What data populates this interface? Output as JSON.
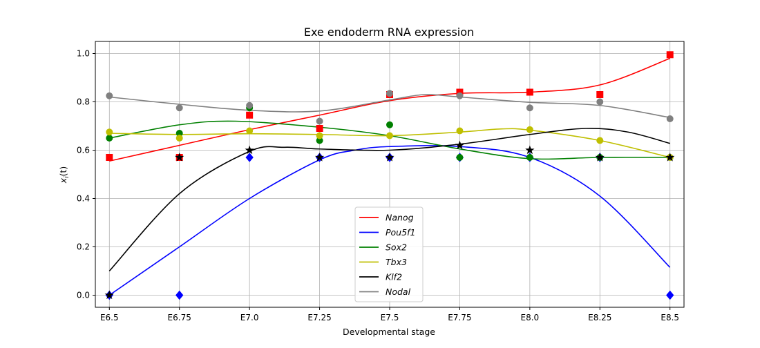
{
  "chart_data": {
    "type": "line",
    "title": "Exe endoderm RNA expression",
    "xlabel": "Developmental stage",
    "ylabel": "x_i(t)",
    "categories": [
      "E6.5",
      "E6.75",
      "E7.0",
      "E7.25",
      "E7.5",
      "E7.75",
      "E8.0",
      "E8.25",
      "E8.5"
    ],
    "x_positions": [
      6.5,
      6.75,
      7.0,
      7.25,
      7.5,
      7.75,
      8.0,
      8.25,
      8.5
    ],
    "xlim": [
      6.45,
      8.55
    ],
    "ylim": [
      -0.05,
      1.05
    ],
    "yticks": [
      0.0,
      0.2,
      0.4,
      0.6,
      0.8,
      1.0
    ],
    "grid": true,
    "legend_position": "lower-center",
    "series": [
      {
        "name": "Nanog",
        "color": "#ff0000",
        "marker": "square",
        "points": [
          0.57,
          0.57,
          0.745,
          0.69,
          0.83,
          0.84,
          0.84,
          0.83,
          0.995
        ],
        "curve_x": [
          6.5,
          6.75,
          7.0,
          7.25,
          7.5,
          7.75,
          8.0,
          8.25,
          8.5
        ],
        "curve_y": [
          0.555,
          0.62,
          0.685,
          0.745,
          0.805,
          0.835,
          0.84,
          0.87,
          0.98
        ]
      },
      {
        "name": "Pou5f1",
        "color": "#0000ff",
        "marker": "diamond",
        "points": [
          0.0,
          0.0,
          0.57,
          0.57,
          0.57,
          0.57,
          0.57,
          0.57,
          0.0
        ],
        "curve_x": [
          6.5,
          6.75,
          7.0,
          7.25,
          7.375,
          7.5,
          7.75,
          8.0,
          8.25,
          8.5
        ],
        "curve_y": [
          0.0,
          0.2,
          0.4,
          0.56,
          0.6,
          0.615,
          0.615,
          0.57,
          0.41,
          0.115
        ]
      },
      {
        "name": "Sox2",
        "color": "#008000",
        "marker": "circle",
        "points": [
          0.65,
          0.67,
          0.775,
          0.64,
          0.705,
          0.57,
          0.57,
          0.57,
          0.57
        ],
        "curve_x": [
          6.5,
          6.75,
          6.95,
          7.25,
          7.5,
          7.75,
          8.0,
          8.25,
          8.5
        ],
        "curve_y": [
          0.65,
          0.705,
          0.72,
          0.695,
          0.66,
          0.605,
          0.565,
          0.57,
          0.57
        ]
      },
      {
        "name": "Tbx3",
        "color": "#bfbf00",
        "marker": "circle",
        "points": [
          0.675,
          0.65,
          0.68,
          0.66,
          0.66,
          0.68,
          0.685,
          0.64,
          0.57
        ],
        "curve_x": [
          6.5,
          6.75,
          7.0,
          7.25,
          7.5,
          7.75,
          7.9,
          8.0,
          8.25,
          8.5
        ],
        "curve_y": [
          0.67,
          0.665,
          0.668,
          0.665,
          0.66,
          0.675,
          0.688,
          0.683,
          0.64,
          0.57
        ]
      },
      {
        "name": "Klf2",
        "color": "#000000",
        "marker": "star",
        "points": [
          0.0,
          0.57,
          0.6,
          0.57,
          0.57,
          0.62,
          0.6,
          0.57,
          0.57
        ],
        "curve_x": [
          6.5,
          6.75,
          7.0,
          7.125,
          7.25,
          7.5,
          7.75,
          8.0,
          8.2,
          8.35,
          8.5
        ],
        "curve_y": [
          0.1,
          0.42,
          0.595,
          0.612,
          0.605,
          0.6,
          0.625,
          0.665,
          0.69,
          0.675,
          0.628
        ]
      },
      {
        "name": "Nodal",
        "color": "#808080",
        "marker": "circle",
        "points": [
          0.825,
          0.775,
          0.785,
          0.72,
          0.835,
          0.825,
          0.775,
          0.8,
          0.73
        ],
        "curve_x": [
          6.5,
          6.75,
          7.0,
          7.25,
          7.5,
          7.625,
          7.75,
          8.0,
          8.25,
          8.5
        ],
        "curve_y": [
          0.82,
          0.79,
          0.765,
          0.762,
          0.808,
          0.83,
          0.82,
          0.798,
          0.785,
          0.735
        ]
      }
    ]
  }
}
